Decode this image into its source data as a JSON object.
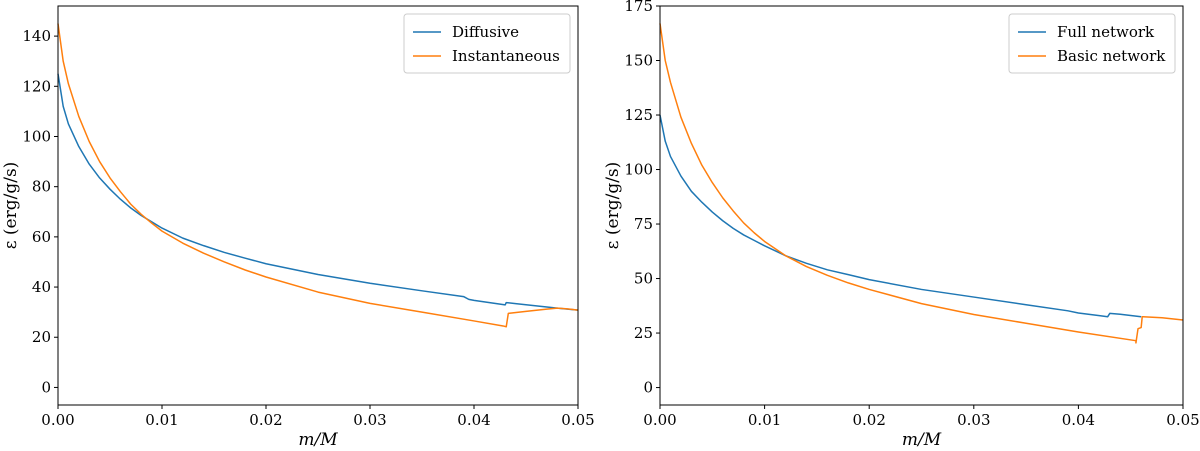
{
  "chart_data": [
    {
      "type": "line",
      "xlabel": "m/M",
      "ylabel": "ε (erg/g/s)",
      "xlim": [
        0,
        0.05
      ],
      "ylim": [
        -7,
        152
      ],
      "xticks": [
        0,
        0.01,
        0.02,
        0.03,
        0.04,
        0.05
      ],
      "xtick_labels": [
        "0.00",
        "0.01",
        "0.02",
        "0.03",
        "0.04",
        "0.05"
      ],
      "yticks": [
        0,
        20,
        40,
        60,
        80,
        100,
        120,
        140
      ],
      "ytick_labels": [
        "0",
        "20",
        "40",
        "60",
        "80",
        "100",
        "120",
        "140"
      ],
      "legend_position": "top-right",
      "grid": false,
      "series": [
        {
          "name": "Diffusive",
          "color": "#1f77b4",
          "points": [
            [
              0,
              125
            ],
            [
              0.0005,
              112
            ],
            [
              0.001,
              105
            ],
            [
              0.002,
              96
            ],
            [
              0.003,
              89
            ],
            [
              0.004,
              83.5
            ],
            [
              0.005,
              79
            ],
            [
              0.006,
              75
            ],
            [
              0.007,
              71.5
            ],
            [
              0.008,
              68.5
            ],
            [
              0.009,
              66
            ],
            [
              0.01,
              63.5
            ],
            [
              0.012,
              59.5
            ],
            [
              0.014,
              56.5
            ],
            [
              0.016,
              53.8
            ],
            [
              0.018,
              51.5
            ],
            [
              0.02,
              49.3
            ],
            [
              0.025,
              45
            ],
            [
              0.03,
              41.5
            ],
            [
              0.035,
              38.5
            ],
            [
              0.039,
              36.2
            ],
            [
              0.0395,
              35.1
            ],
            [
              0.04,
              34.7
            ],
            [
              0.042,
              33.5
            ],
            [
              0.043,
              32.9
            ],
            [
              0.0431,
              33.8
            ],
            [
              0.044,
              33.4
            ],
            [
              0.046,
              32.5
            ],
            [
              0.048,
              31.6
            ],
            [
              0.05,
              30.8
            ]
          ]
        },
        {
          "name": "Instantaneous",
          "color": "#ff7f0e",
          "points": [
            [
              0,
              145
            ],
            [
              0.0005,
              130
            ],
            [
              0.001,
              121
            ],
            [
              0.002,
              108
            ],
            [
              0.003,
              98
            ],
            [
              0.004,
              90
            ],
            [
              0.005,
              83.5
            ],
            [
              0.006,
              78
            ],
            [
              0.007,
              73
            ],
            [
              0.008,
              69
            ],
            [
              0.009,
              65.5
            ],
            [
              0.01,
              62.3
            ],
            [
              0.012,
              57.5
            ],
            [
              0.014,
              53.5
            ],
            [
              0.016,
              50
            ],
            [
              0.018,
              46.8
            ],
            [
              0.02,
              44
            ],
            [
              0.025,
              38
            ],
            [
              0.03,
              33.5
            ],
            [
              0.035,
              30
            ],
            [
              0.04,
              26.5
            ],
            [
              0.0428,
              24.5
            ],
            [
              0.0431,
              24.2
            ],
            [
              0.0433,
              29.5
            ],
            [
              0.045,
              30.3
            ],
            [
              0.047,
              31.2
            ],
            [
              0.048,
              31.6
            ],
            [
              0.049,
              31.3
            ],
            [
              0.05,
              30.8
            ]
          ]
        }
      ]
    },
    {
      "type": "line",
      "xlabel": "m/M",
      "ylabel": "ε (erg/g/s)",
      "xlim": [
        0,
        0.05
      ],
      "ylim": [
        -8,
        175
      ],
      "xticks": [
        0,
        0.01,
        0.02,
        0.03,
        0.04,
        0.05
      ],
      "xtick_labels": [
        "0.00",
        "0.01",
        "0.02",
        "0.03",
        "0.04",
        "0.05"
      ],
      "yticks": [
        0,
        25,
        50,
        75,
        100,
        125,
        150,
        175
      ],
      "ytick_labels": [
        "0",
        "25",
        "50",
        "75",
        "100",
        "125",
        "150",
        "175"
      ],
      "legend_position": "top-right",
      "grid": false,
      "series": [
        {
          "name": "Full network",
          "color": "#1f77b4",
          "points": [
            [
              0,
              125
            ],
            [
              0.0005,
              113
            ],
            [
              0.001,
              106
            ],
            [
              0.002,
              97
            ],
            [
              0.003,
              90
            ],
            [
              0.004,
              85
            ],
            [
              0.005,
              80.5
            ],
            [
              0.006,
              76.5
            ],
            [
              0.007,
              73
            ],
            [
              0.008,
              70
            ],
            [
              0.009,
              67.5
            ],
            [
              0.01,
              65
            ],
            [
              0.012,
              60.5
            ],
            [
              0.014,
              57
            ],
            [
              0.016,
              54
            ],
            [
              0.018,
              51.8
            ],
            [
              0.02,
              49.5
            ],
            [
              0.025,
              45
            ],
            [
              0.03,
              41.5
            ],
            [
              0.035,
              38
            ],
            [
              0.039,
              35.2
            ],
            [
              0.04,
              34.2
            ],
            [
              0.042,
              33
            ],
            [
              0.0428,
              32.5
            ],
            [
              0.043,
              34
            ],
            [
              0.044,
              33.6
            ],
            [
              0.046,
              32.5
            ]
          ]
        },
        {
          "name": "Basic network",
          "color": "#ff7f0e",
          "points": [
            [
              0,
              167
            ],
            [
              0.0005,
              150
            ],
            [
              0.001,
              140
            ],
            [
              0.002,
              124
            ],
            [
              0.003,
              112
            ],
            [
              0.004,
              102
            ],
            [
              0.005,
              94
            ],
            [
              0.006,
              87
            ],
            [
              0.007,
              81
            ],
            [
              0.008,
              75.5
            ],
            [
              0.009,
              71
            ],
            [
              0.01,
              67
            ],
            [
              0.012,
              60.5
            ],
            [
              0.014,
              55.5
            ],
            [
              0.016,
              51.5
            ],
            [
              0.018,
              48
            ],
            [
              0.02,
              45
            ],
            [
              0.025,
              38.5
            ],
            [
              0.03,
              33.5
            ],
            [
              0.035,
              29.5
            ],
            [
              0.04,
              25.5
            ],
            [
              0.0455,
              21.5
            ],
            [
              0.0455,
              20.5
            ],
            [
              0.0457,
              27
            ],
            [
              0.046,
              27.5
            ],
            [
              0.0461,
              32.5
            ],
            [
              0.048,
              32
            ],
            [
              0.05,
              31
            ]
          ]
        }
      ]
    }
  ]
}
